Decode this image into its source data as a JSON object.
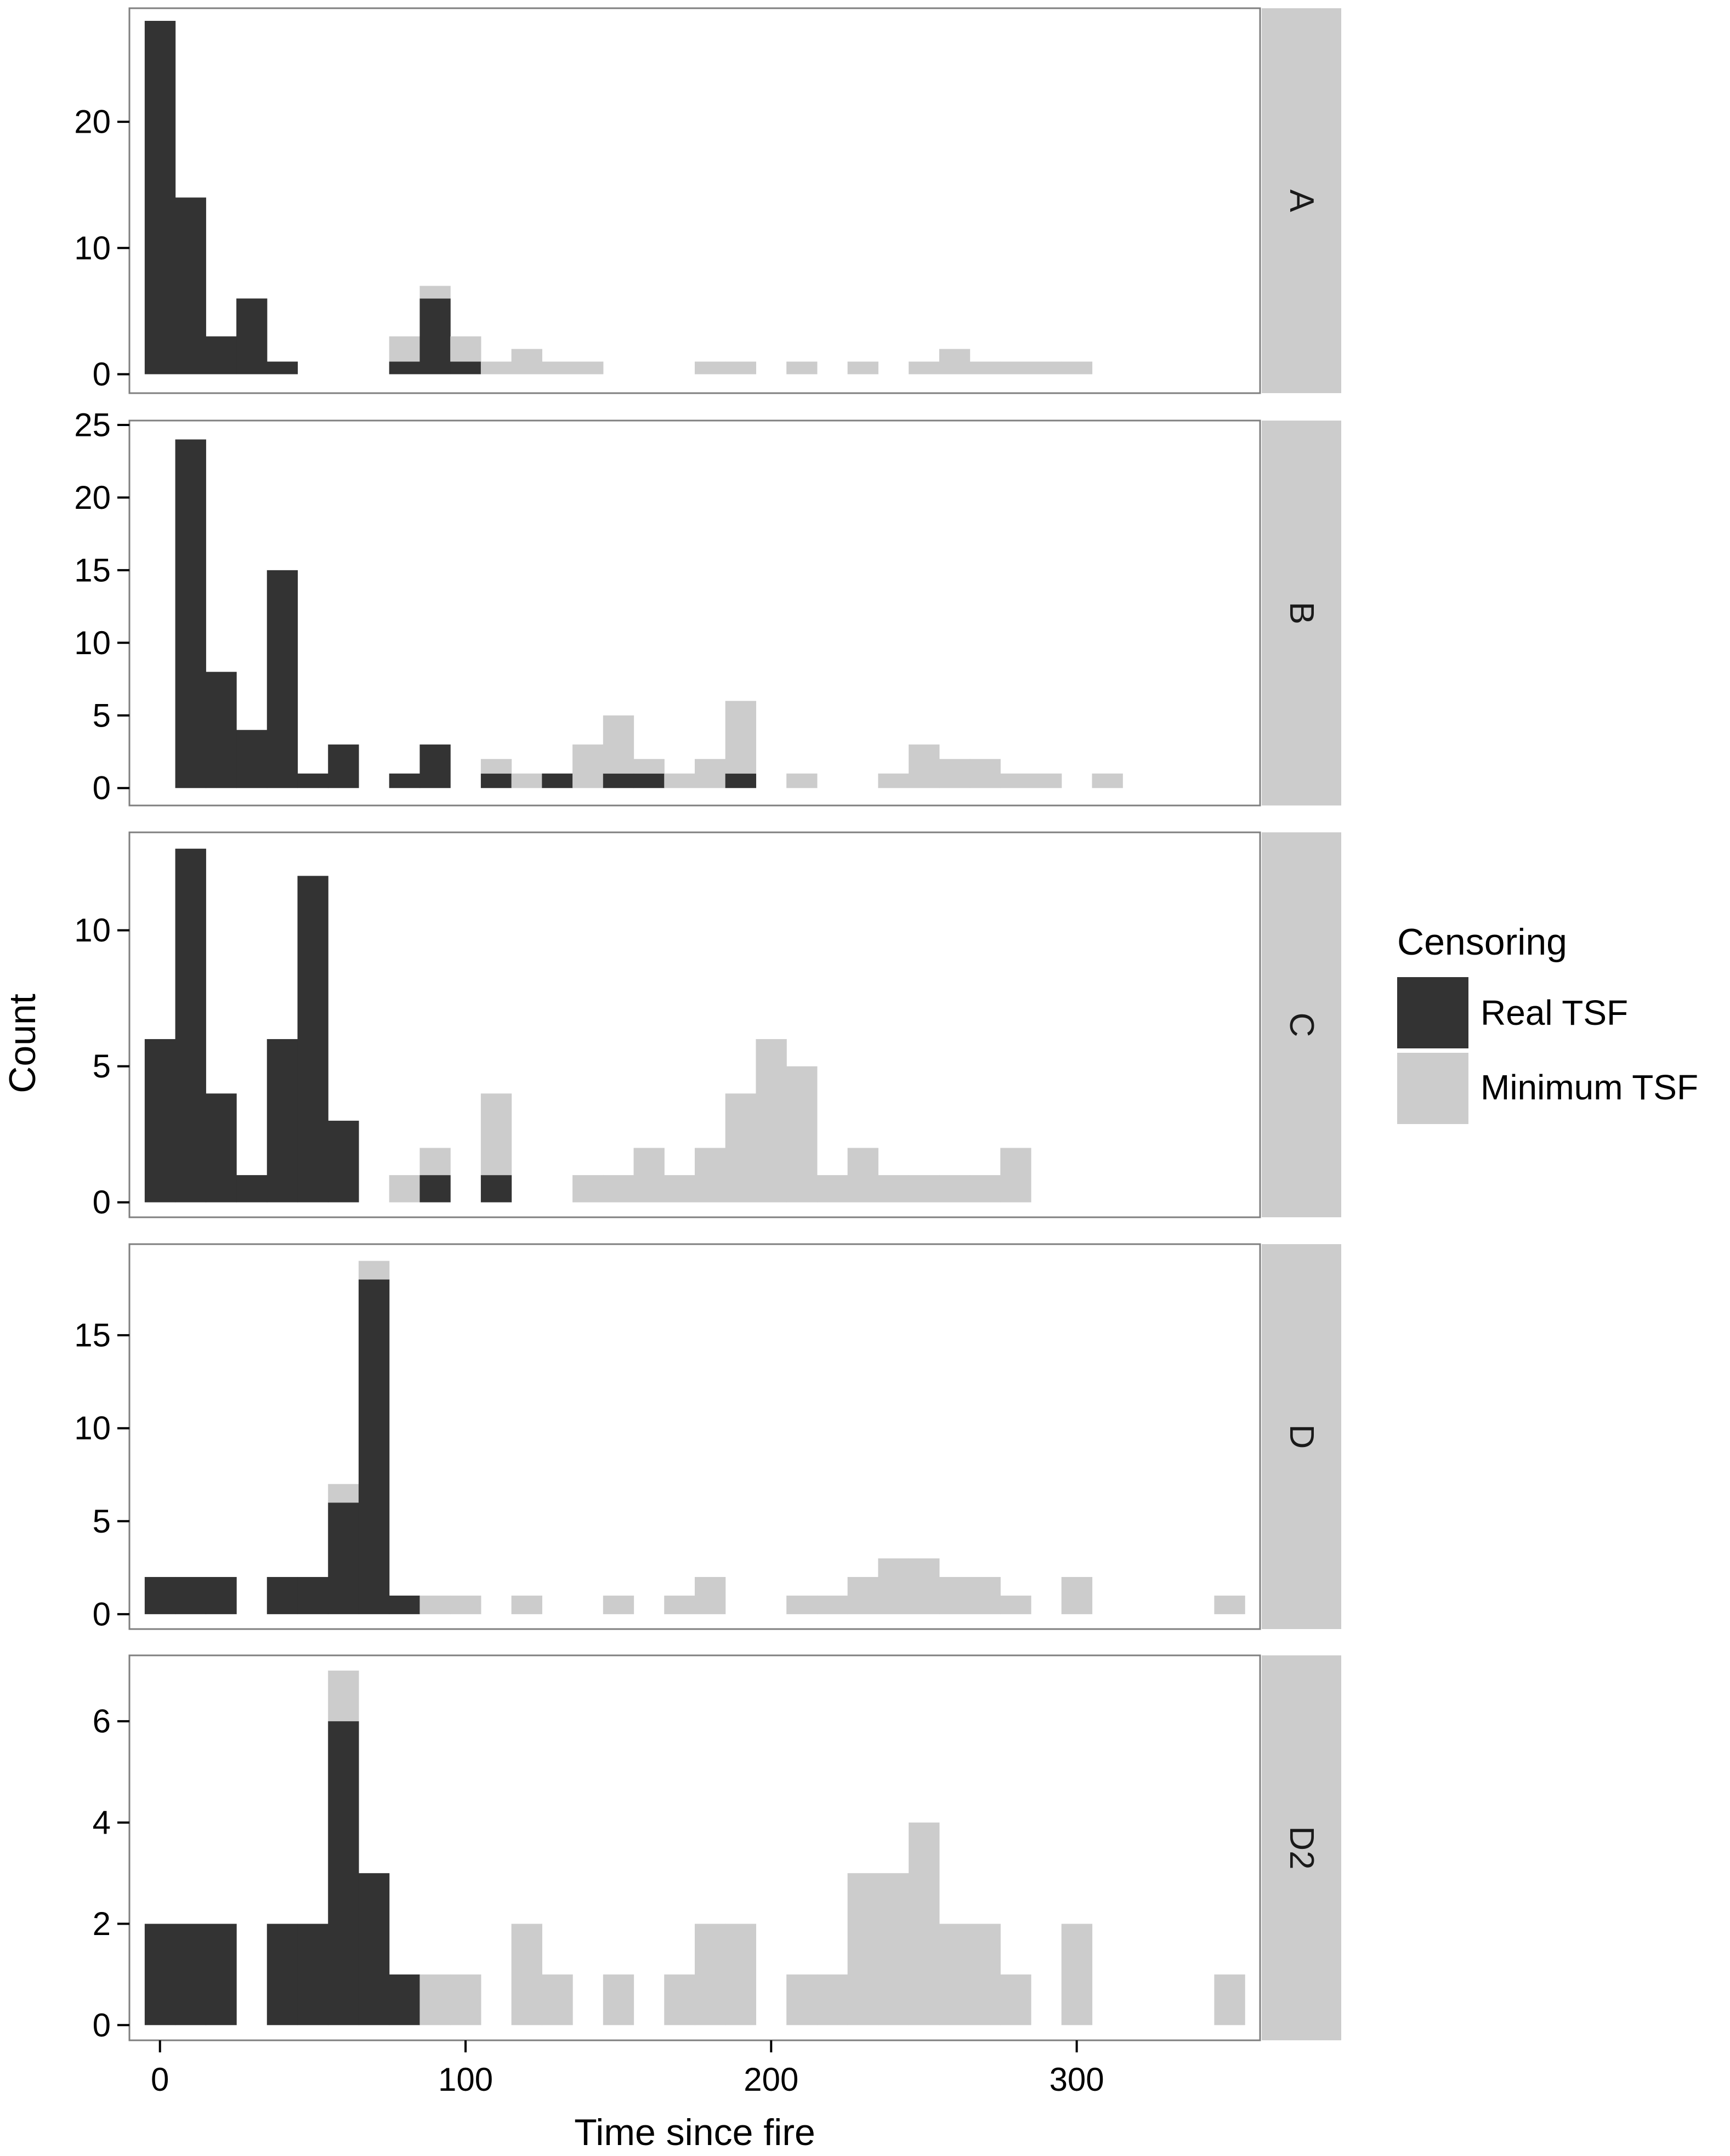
{
  "chart_data": {
    "type": "bar",
    "stacked": true,
    "bin_width": 10,
    "xlabel": "Time since fire",
    "ylabel": "Count",
    "xlim": [
      -10,
      360
    ],
    "x_ticks": [
      0,
      100,
      200,
      300
    ],
    "legend": {
      "title": "Censoring",
      "placement": "right",
      "entries": [
        {
          "name": "Real TSF",
          "color": "#333333"
        },
        {
          "name": "Minimum TSF",
          "color": "#cccccc"
        }
      ]
    },
    "colors": {
      "real": "#333333",
      "minimum": "#cccccc",
      "strip": "#cccccc",
      "panel_border": "#7f7f7f"
    },
    "panels": [
      {
        "label": "A",
        "ylim": [
          -1.5,
          29
        ],
        "y_ticks": [
          0,
          10,
          20
        ],
        "bins": [
          {
            "x": 0,
            "real": 28,
            "min": 0
          },
          {
            "x": 10,
            "real": 14,
            "min": 0
          },
          {
            "x": 20,
            "real": 3,
            "min": 0
          },
          {
            "x": 30,
            "real": 6,
            "min": 0
          },
          {
            "x": 40,
            "real": 1,
            "min": 0
          },
          {
            "x": 80,
            "real": 1,
            "min": 2
          },
          {
            "x": 90,
            "real": 6,
            "min": 1
          },
          {
            "x": 100,
            "real": 1,
            "min": 2
          },
          {
            "x": 110,
            "real": 0,
            "min": 1
          },
          {
            "x": 120,
            "real": 0,
            "min": 2
          },
          {
            "x": 130,
            "real": 0,
            "min": 1
          },
          {
            "x": 140,
            "real": 0,
            "min": 1
          },
          {
            "x": 180,
            "real": 0,
            "min": 1
          },
          {
            "x": 190,
            "real": 0,
            "min": 1
          },
          {
            "x": 210,
            "real": 0,
            "min": 1
          },
          {
            "x": 230,
            "real": 0,
            "min": 1
          },
          {
            "x": 250,
            "real": 0,
            "min": 1
          },
          {
            "x": 260,
            "real": 0,
            "min": 2
          },
          {
            "x": 270,
            "real": 0,
            "min": 1
          },
          {
            "x": 280,
            "real": 0,
            "min": 1
          },
          {
            "x": 290,
            "real": 0,
            "min": 1
          },
          {
            "x": 300,
            "real": 0,
            "min": 1
          }
        ]
      },
      {
        "label": "B",
        "ylim": [
          -1.2,
          25.3
        ],
        "y_ticks": [
          0,
          5,
          10,
          15,
          20,
          25
        ],
        "bins": [
          {
            "x": 10,
            "real": 24,
            "min": 0
          },
          {
            "x": 20,
            "real": 8,
            "min": 0
          },
          {
            "x": 30,
            "real": 4,
            "min": 0
          },
          {
            "x": 40,
            "real": 15,
            "min": 0
          },
          {
            "x": 50,
            "real": 1,
            "min": 0
          },
          {
            "x": 60,
            "real": 3,
            "min": 0
          },
          {
            "x": 80,
            "real": 1,
            "min": 0
          },
          {
            "x": 90,
            "real": 3,
            "min": 0
          },
          {
            "x": 110,
            "real": 1,
            "min": 1
          },
          {
            "x": 120,
            "real": 0,
            "min": 1
          },
          {
            "x": 130,
            "real": 1,
            "min": 0
          },
          {
            "x": 140,
            "real": 0,
            "min": 3
          },
          {
            "x": 150,
            "real": 1,
            "min": 4
          },
          {
            "x": 160,
            "real": 1,
            "min": 1
          },
          {
            "x": 170,
            "real": 0,
            "min": 1
          },
          {
            "x": 180,
            "real": 0,
            "min": 2
          },
          {
            "x": 190,
            "real": 1,
            "min": 5
          },
          {
            "x": 210,
            "real": 0,
            "min": 1
          },
          {
            "x": 240,
            "real": 0,
            "min": 1
          },
          {
            "x": 250,
            "real": 0,
            "min": 3
          },
          {
            "x": 260,
            "real": 0,
            "min": 2
          },
          {
            "x": 270,
            "real": 0,
            "min": 2
          },
          {
            "x": 280,
            "real": 0,
            "min": 1
          },
          {
            "x": 290,
            "real": 0,
            "min": 1
          },
          {
            "x": 310,
            "real": 0,
            "min": 1
          }
        ]
      },
      {
        "label": "C",
        "ylim": [
          -0.55,
          13.6
        ],
        "y_ticks": [
          0,
          5,
          10
        ],
        "bins": [
          {
            "x": 0,
            "real": 6,
            "min": 0
          },
          {
            "x": 10,
            "real": 13,
            "min": 0
          },
          {
            "x": 20,
            "real": 4,
            "min": 0
          },
          {
            "x": 30,
            "real": 1,
            "min": 0
          },
          {
            "x": 40,
            "real": 6,
            "min": 0
          },
          {
            "x": 50,
            "real": 12,
            "min": 0
          },
          {
            "x": 60,
            "real": 3,
            "min": 0
          },
          {
            "x": 80,
            "real": 0,
            "min": 1
          },
          {
            "x": 90,
            "real": 1,
            "min": 1
          },
          {
            "x": 110,
            "real": 1,
            "min": 3
          },
          {
            "x": 140,
            "real": 0,
            "min": 1
          },
          {
            "x": 150,
            "real": 0,
            "min": 1
          },
          {
            "x": 160,
            "real": 0,
            "min": 2
          },
          {
            "x": 170,
            "real": 0,
            "min": 1
          },
          {
            "x": 180,
            "real": 0,
            "min": 2
          },
          {
            "x": 190,
            "real": 0,
            "min": 4
          },
          {
            "x": 200,
            "real": 0,
            "min": 6
          },
          {
            "x": 210,
            "real": 0,
            "min": 5
          },
          {
            "x": 220,
            "real": 0,
            "min": 1
          },
          {
            "x": 230,
            "real": 0,
            "min": 2
          },
          {
            "x": 240,
            "real": 0,
            "min": 1
          },
          {
            "x": 250,
            "real": 0,
            "min": 1
          },
          {
            "x": 260,
            "real": 0,
            "min": 1
          },
          {
            "x": 270,
            "real": 0,
            "min": 1
          },
          {
            "x": 280,
            "real": 0,
            "min": 2
          }
        ]
      },
      {
        "label": "D",
        "ylim": [
          -0.8,
          19.9
        ],
        "y_ticks": [
          0,
          5,
          10,
          15
        ],
        "bins": [
          {
            "x": 0,
            "real": 2,
            "min": 0
          },
          {
            "x": 10,
            "real": 2,
            "min": 0
          },
          {
            "x": 20,
            "real": 2,
            "min": 0
          },
          {
            "x": 40,
            "real": 2,
            "min": 0
          },
          {
            "x": 50,
            "real": 2,
            "min": 0
          },
          {
            "x": 60,
            "real": 6,
            "min": 1
          },
          {
            "x": 70,
            "real": 18,
            "min": 1
          },
          {
            "x": 80,
            "real": 1,
            "min": 0
          },
          {
            "x": 90,
            "real": 0,
            "min": 1
          },
          {
            "x": 100,
            "real": 0,
            "min": 1
          },
          {
            "x": 120,
            "real": 0,
            "min": 1
          },
          {
            "x": 150,
            "real": 0,
            "min": 1
          },
          {
            "x": 170,
            "real": 0,
            "min": 1
          },
          {
            "x": 180,
            "real": 0,
            "min": 2
          },
          {
            "x": 210,
            "real": 0,
            "min": 1
          },
          {
            "x": 220,
            "real": 0,
            "min": 1
          },
          {
            "x": 230,
            "real": 0,
            "min": 2
          },
          {
            "x": 240,
            "real": 0,
            "min": 3
          },
          {
            "x": 250,
            "real": 0,
            "min": 3
          },
          {
            "x": 260,
            "real": 0,
            "min": 2
          },
          {
            "x": 270,
            "real": 0,
            "min": 2
          },
          {
            "x": 280,
            "real": 0,
            "min": 1
          },
          {
            "x": 300,
            "real": 0,
            "min": 2
          },
          {
            "x": 350,
            "real": 0,
            "min": 1
          }
        ]
      },
      {
        "label": "D2",
        "ylim": [
          -0.3,
          7.3
        ],
        "y_ticks": [
          0,
          2,
          4,
          6
        ],
        "bins": [
          {
            "x": 0,
            "real": 2,
            "min": 0
          },
          {
            "x": 10,
            "real": 2,
            "min": 0
          },
          {
            "x": 20,
            "real": 2,
            "min": 0
          },
          {
            "x": 40,
            "real": 2,
            "min": 0
          },
          {
            "x": 50,
            "real": 2,
            "min": 0
          },
          {
            "x": 60,
            "real": 6,
            "min": 1
          },
          {
            "x": 70,
            "real": 3,
            "min": 0
          },
          {
            "x": 80,
            "real": 1,
            "min": 0
          },
          {
            "x": 90,
            "real": 0,
            "min": 1
          },
          {
            "x": 100,
            "real": 0,
            "min": 1
          },
          {
            "x": 120,
            "real": 0,
            "min": 2
          },
          {
            "x": 130,
            "real": 0,
            "min": 1
          },
          {
            "x": 150,
            "real": 0,
            "min": 1
          },
          {
            "x": 170,
            "real": 0,
            "min": 1
          },
          {
            "x": 180,
            "real": 0,
            "min": 2
          },
          {
            "x": 190,
            "real": 0,
            "min": 2
          },
          {
            "x": 210,
            "real": 0,
            "min": 1
          },
          {
            "x": 220,
            "real": 0,
            "min": 1
          },
          {
            "x": 230,
            "real": 0,
            "min": 3
          },
          {
            "x": 240,
            "real": 0,
            "min": 3
          },
          {
            "x": 250,
            "real": 0,
            "min": 4
          },
          {
            "x": 260,
            "real": 0,
            "min": 2
          },
          {
            "x": 270,
            "real": 0,
            "min": 2
          },
          {
            "x": 280,
            "real": 0,
            "min": 1
          },
          {
            "x": 300,
            "real": 0,
            "min": 2
          },
          {
            "x": 350,
            "real": 0,
            "min": 1
          }
        ]
      }
    ]
  }
}
